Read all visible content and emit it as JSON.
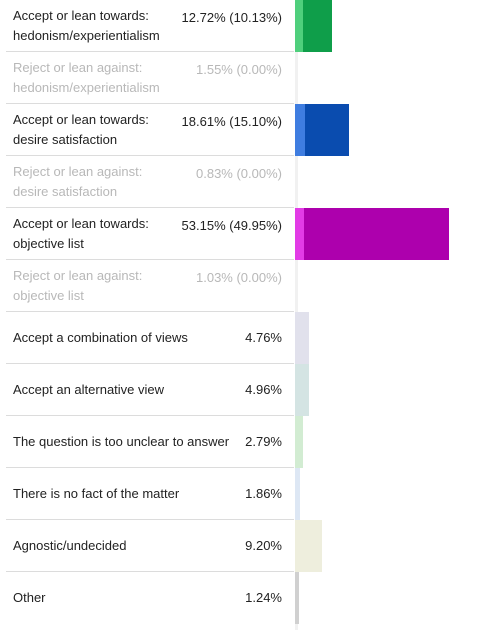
{
  "chart_data": {
    "type": "bar",
    "orientation": "horizontal",
    "rows": [
      {
        "label": "Accept or lean towards:\nhedonism/experientialism",
        "value_text": "12.72% (10.13%)",
        "total": 12.72,
        "accept": 10.13,
        "muted": false,
        "color_light": "#4fcf7c",
        "color_dark": "#0f9e4a"
      },
      {
        "label": "Reject or lean against:\nhedonism/experientialism",
        "value_text": "1.55% (0.00%)",
        "total": 1.55,
        "accept": 0.0,
        "muted": true,
        "color_light": "#ffffff",
        "color_dark": "#ffffff"
      },
      {
        "label": "Accept or lean towards:\ndesire satisfaction",
        "value_text": "18.61% (15.10%)",
        "total": 18.61,
        "accept": 15.1,
        "muted": false,
        "color_light": "#3f7de0",
        "color_dark": "#0a4caf"
      },
      {
        "label": "Reject or lean against:\ndesire satisfaction",
        "value_text": "0.83% (0.00%)",
        "total": 0.83,
        "accept": 0.0,
        "muted": true,
        "color_light": "#ffffff",
        "color_dark": "#ffffff"
      },
      {
        "label": "Accept or lean towards:\nobjective list",
        "value_text": "53.15% (49.95%)",
        "total": 53.15,
        "accept": 49.95,
        "muted": false,
        "color_light": "#e23be6",
        "color_dark": "#ad00ad"
      },
      {
        "label": "Reject or lean against:\nobjective list",
        "value_text": "1.03% (0.00%)",
        "total": 1.03,
        "accept": 0.0,
        "muted": true,
        "color_light": "#ffffff",
        "color_dark": "#ffffff"
      },
      {
        "label": "Accept a combination of views",
        "value_text": "4.76%",
        "total": 4.76,
        "accept": null,
        "muted": false,
        "color_light": "#e1e1ec",
        "color_dark": null
      },
      {
        "label": "Accept an alternative view",
        "value_text": "4.96%",
        "total": 4.96,
        "accept": null,
        "muted": false,
        "color_light": "#d4e4e3",
        "color_dark": null
      },
      {
        "label": "The question is too unclear to answer",
        "value_text": "2.79%",
        "total": 2.79,
        "accept": null,
        "muted": false,
        "color_light": "#d2ecd2",
        "color_dark": null
      },
      {
        "label": "There is no fact of the matter",
        "value_text": "1.86%",
        "total": 1.86,
        "accept": null,
        "muted": false,
        "color_light": "#dde7f4",
        "color_dark": null
      },
      {
        "label": "Agnostic/undecided",
        "value_text": "9.20%",
        "total": 9.2,
        "accept": null,
        "muted": false,
        "color_light": "#eeeedd",
        "color_dark": null
      },
      {
        "label": "Other",
        "value_text": "1.24%",
        "total": 1.24,
        "accept": null,
        "muted": false,
        "color_light": "#d0d0d0",
        "color_dark": null
      }
    ],
    "xlim": [
      0,
      100
    ]
  }
}
